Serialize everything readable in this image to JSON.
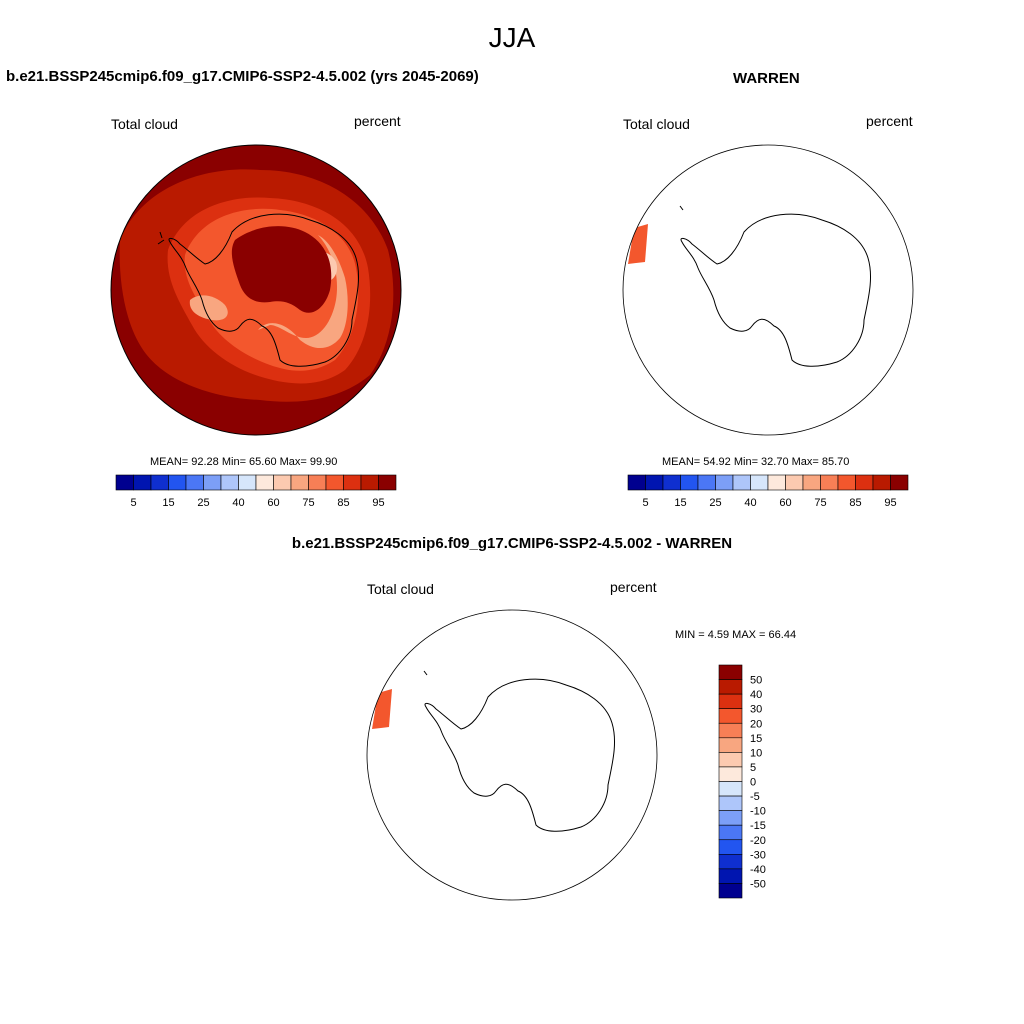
{
  "figure": {
    "title": "JJA"
  },
  "panels": [
    {
      "id": "case",
      "case_title": "b.e21.BSSP245cmip6.f09_g17.CMIP6-SSP2-4.5.002 (yrs 2045-2069)",
      "variable": "Total cloud",
      "units": "percent",
      "stats": {
        "text": "MEAN=  92.28  Min=  65.60  Max=  99.90"
      },
      "colorbar_ticks": [
        "5",
        "15",
        "25",
        "40",
        "60",
        "75",
        "85",
        "95"
      ]
    },
    {
      "id": "obs",
      "case_title": "WARREN",
      "variable": "Total cloud",
      "units": "percent",
      "stats": {
        "text": "MEAN=  54.92  Min=  32.70  Max=  85.70"
      },
      "colorbar_ticks": [
        "5",
        "15",
        "25",
        "40",
        "60",
        "75",
        "85",
        "95"
      ]
    },
    {
      "id": "diff",
      "case_title": "b.e21.BSSP245cmip6.f09_g17.CMIP6-SSP2-4.5.002 - WARREN",
      "variable": "Total cloud",
      "units": "percent",
      "stats": {
        "text": "MIN =   4.59 MAX =  66.44"
      },
      "colorbar_ticks": [
        "50",
        "40",
        "30",
        "20",
        "15",
        "10",
        "5",
        "0",
        "-5",
        "-10",
        "-15",
        "-20",
        "-30",
        "-40",
        "-50"
      ]
    }
  ],
  "colors": {
    "colorbar_abs": [
      "#00008f",
      "#0015b0",
      "#0f2fcf",
      "#2255f0",
      "#4b77f5",
      "#7c9ff7",
      "#aec6fa",
      "#d6e6fb",
      "#fde9dc",
      "#fccab0",
      "#f8a680",
      "#f77f56",
      "#f3572d",
      "#dc3010",
      "#b91a00",
      "#8a0000"
    ],
    "colorbar_diff": [
      "#8a0000",
      "#b91a00",
      "#dc3010",
      "#f3572d",
      "#f77f56",
      "#f8a680",
      "#fccab0",
      "#fde9dc",
      "#d6e6fb",
      "#aec6fa",
      "#7c9ff7",
      "#4b77f5",
      "#2255f0",
      "#0f2fcf",
      "#0015b0",
      "#00008f"
    ],
    "field_dark": "#8a0000",
    "field_mid": "#b91a00",
    "field_orange": "#dc3010",
    "field_light": "#f3572d",
    "field_pale": "#f8a680",
    "field_lightest": "#fccab0",
    "obs_strip": "#f3572d"
  }
}
